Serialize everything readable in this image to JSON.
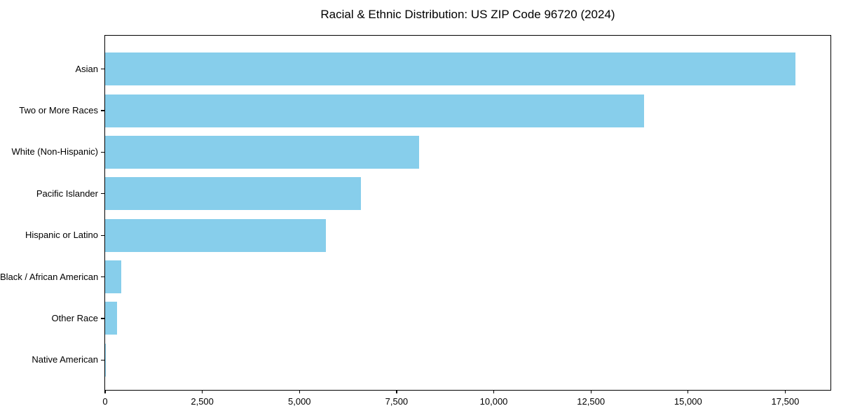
{
  "chart_data": {
    "type": "bar",
    "orientation": "horizontal",
    "title": "Racial & Ethnic Distribution: US ZIP Code 96720 (2024)",
    "categories": [
      "Asian",
      "Two or More Races",
      "White (Non-Hispanic)",
      "Pacific Islander",
      "Hispanic or Latino",
      "Black / African American",
      "Other Race",
      "Native American"
    ],
    "values": [
      17800,
      13900,
      8100,
      6600,
      5700,
      420,
      300,
      25
    ],
    "xlabel": "",
    "ylabel": "",
    "xlim": [
      0,
      18700
    ],
    "xticks": [
      0,
      2500,
      5000,
      7500,
      10000,
      12500,
      15000,
      17500
    ],
    "xtick_labels": [
      "0",
      "2,500",
      "5,000",
      "7,500",
      "10,000",
      "12,500",
      "15,000",
      "17,500"
    ],
    "grid": false,
    "legend": "none",
    "colors": {
      "bar": "#87CEEB",
      "axis": "#000000",
      "text": "#000000",
      "background": "#ffffff"
    }
  }
}
